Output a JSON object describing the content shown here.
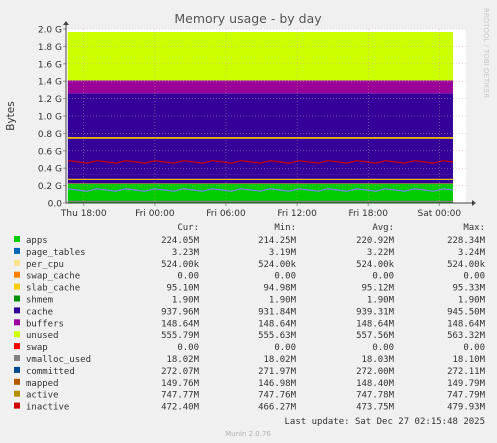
{
  "chart_data": {
    "type": "area",
    "title": "Memory usage - by day",
    "ylabel": "Bytes",
    "side_label": "RRDTOOL / TOBI OETIKER",
    "ylim": [
      0,
      2000000000
    ],
    "y_ticks": [
      {
        "v": 0,
        "label": "0.0"
      },
      {
        "v": 200000000,
        "label": "0.2 G"
      },
      {
        "v": 400000000,
        "label": "0.4 G"
      },
      {
        "v": 600000000,
        "label": "0.6 G"
      },
      {
        "v": 800000000,
        "label": "0.8 G"
      },
      {
        "v": 1000000000,
        "label": "1.0 G"
      },
      {
        "v": 1200000000,
        "label": "1.2 G"
      },
      {
        "v": 1400000000,
        "label": "1.4 G"
      },
      {
        "v": 1600000000,
        "label": "1.6 G"
      },
      {
        "v": 1800000000,
        "label": "1.8 G"
      },
      {
        "v": 2000000000,
        "label": "2.0 G"
      }
    ],
    "x_ticks": [
      "Thu 18:00",
      "Fri 00:00",
      "Fri 06:00",
      "Fri 12:00",
      "Fri 18:00",
      "Sat 00:00"
    ],
    "x_tick_hours": [
      0,
      6,
      12,
      18,
      24,
      30
    ],
    "x_range_hours": [
      -1.5,
      32.25
    ],
    "grid": true,
    "stacked_series": [
      {
        "name": "apps",
        "color": "#00cc00",
        "value": 224050000
      },
      {
        "name": "page_tables",
        "color": "#0066b3",
        "value": 3230000
      },
      {
        "name": "per_cpu",
        "color": "#ff8000",
        "value": 524000
      },
      {
        "name": "swap_cache",
        "color": "#ffcc00",
        "value": 0
      },
      {
        "name": "slab_cache",
        "color": "#330099",
        "value": 95100000
      },
      {
        "name": "cache",
        "color": "#330099",
        "value": 937960000
      },
      {
        "name": "buffers",
        "color": "#990099",
        "value": 148640000
      },
      {
        "name": "unused",
        "color": "#ccff00",
        "value": 555790000
      },
      {
        "name": "swap",
        "color": "#ff0000",
        "value": 0
      }
    ],
    "line_series": [
      {
        "name": "committed",
        "color": "#ffcc00",
        "value": 272070000
      },
      {
        "name": "active",
        "color": "#ffcc00",
        "value": 747770000
      },
      {
        "name": "inactive",
        "color": "#cc0000",
        "value": 472400000
      },
      {
        "name": "mapped",
        "color": "#8080ff",
        "value": 149760000
      },
      {
        "name": "shmem",
        "color": "#008f00",
        "value": 1900000
      },
      {
        "name": "vmalloc_used",
        "color": "#808080",
        "value": 18020000
      }
    ],
    "legend": {
      "headers": [
        "Cur:",
        "Min:",
        "Avg:",
        "Max:"
      ],
      "rows": [
        {
          "name": "apps",
          "color": "#00cc00",
          "cur": "224.05M",
          "min": "214.25M",
          "avg": "220.92M",
          "max": "228.34M"
        },
        {
          "name": "page_tables",
          "color": "#0066b3",
          "cur": "3.23M",
          "min": "3.19M",
          "avg": "3.22M",
          "max": "3.24M"
        },
        {
          "name": "per_cpu",
          "color": "#ffe38a",
          "cur": "524.00k",
          "min": "524.00k",
          "avg": "524.00k",
          "max": "524.00k"
        },
        {
          "name": "swap_cache",
          "color": "#ff8000",
          "cur": "0.00",
          "min": "0.00",
          "avg": "0.00",
          "max": "0.00"
        },
        {
          "name": "slab_cache",
          "color": "#ffcc00",
          "cur": "95.10M",
          "min": "94.98M",
          "avg": "95.12M",
          "max": "95.33M"
        },
        {
          "name": "shmem",
          "color": "#008f00",
          "cur": "1.90M",
          "min": "1.90M",
          "avg": "1.90M",
          "max": "1.90M"
        },
        {
          "name": "cache",
          "color": "#330099",
          "cur": "937.96M",
          "min": "931.84M",
          "avg": "939.31M",
          "max": "945.50M"
        },
        {
          "name": "buffers",
          "color": "#990099",
          "cur": "148.64M",
          "min": "148.64M",
          "avg": "148.64M",
          "max": "148.64M"
        },
        {
          "name": "unused",
          "color": "#ccff00",
          "cur": "555.79M",
          "min": "555.63M",
          "avg": "557.56M",
          "max": "563.32M"
        },
        {
          "name": "swap",
          "color": "#ff0000",
          "cur": "0.00",
          "min": "0.00",
          "avg": "0.00",
          "max": "0.00"
        },
        {
          "name": "vmalloc_used",
          "color": "#808080",
          "cur": "18.02M",
          "min": "18.02M",
          "avg": "18.03M",
          "max": "18.10M"
        },
        {
          "name": "committed",
          "color": "#004a8f",
          "cur": "272.07M",
          "min": "271.97M",
          "avg": "272.00M",
          "max": "272.11M"
        },
        {
          "name": "mapped",
          "color": "#b35a00",
          "cur": "149.76M",
          "min": "146.98M",
          "avg": "148.40M",
          "max": "149.79M"
        },
        {
          "name": "active",
          "color": "#b38f00",
          "cur": "747.77M",
          "min": "747.76M",
          "avg": "747.78M",
          "max": "747.79M"
        },
        {
          "name": "inactive",
          "color": "#cc0000",
          "cur": "472.40M",
          "min": "466.27M",
          "avg": "473.75M",
          "max": "479.93M"
        }
      ]
    },
    "last_update": "Last update: Sat Dec 27 02:15:48 2025",
    "footer": "Munin 2.0.76"
  }
}
